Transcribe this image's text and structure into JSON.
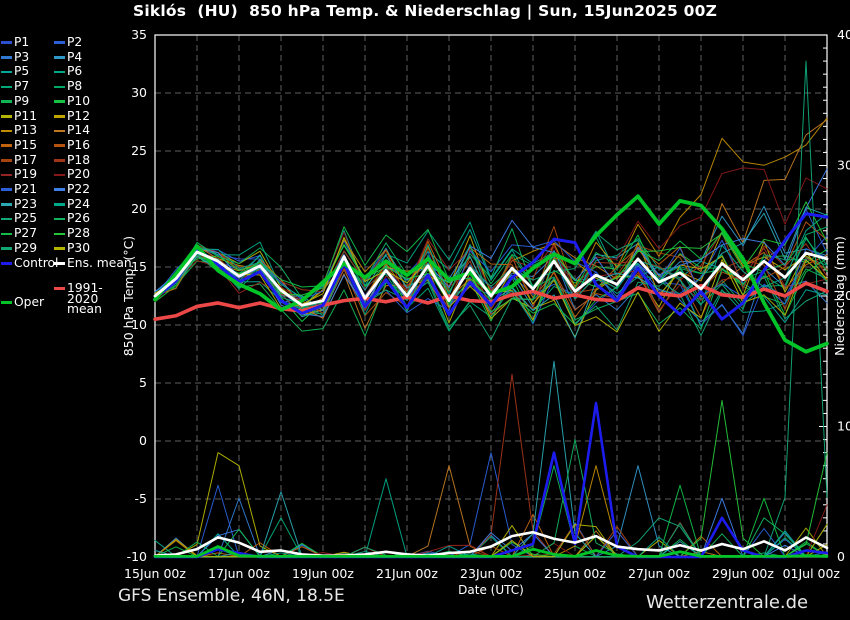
{
  "title": "Siklós  (HU)  850 hPa Temp. & Niederschlag | Sun, 15Jun2025 00Z",
  "footer": {
    "left": "GFS Ensemble, 46N, 18.5E",
    "right": "Wetterzentrale.de"
  },
  "colors": {
    "background": "#000000",
    "frame": "#ffffff",
    "grid": "#5e5e5e",
    "text": "#ffffff",
    "control": "#1c1cee",
    "ens_mean": "#ffffff",
    "oper": "#00c428",
    "clim_mean": "#ec4848"
  },
  "legend": {
    "members": [
      {
        "label": "P1",
        "color": "#2a4fd0"
      },
      {
        "label": "P2",
        "color": "#2a5fd8"
      },
      {
        "label": "P3",
        "color": "#2f7ad0"
      },
      {
        "label": "P4",
        "color": "#2f96c8"
      },
      {
        "label": "P5",
        "color": "#00a89a"
      },
      {
        "label": "P6",
        "color": "#00a888"
      },
      {
        "label": "P7",
        "color": "#00a878"
      },
      {
        "label": "P8",
        "color": "#00aa66"
      },
      {
        "label": "P9",
        "color": "#10b455"
      },
      {
        "label": "P10",
        "color": "#15c242"
      },
      {
        "label": "P11",
        "color": "#b4b400"
      },
      {
        "label": "P12",
        "color": "#c0a400"
      },
      {
        "label": "P13",
        "color": "#c08c00"
      },
      {
        "label": "P14",
        "color": "#c07820"
      },
      {
        "label": "P15",
        "color": "#c06410"
      },
      {
        "label": "P16",
        "color": "#b45410"
      },
      {
        "label": "P17",
        "color": "#a84410"
      },
      {
        "label": "P18",
        "color": "#a03418"
      },
      {
        "label": "P19",
        "color": "#962420"
      },
      {
        "label": "P20",
        "color": "#881818"
      },
      {
        "label": "P21",
        "color": "#2a5fd8"
      },
      {
        "label": "P22",
        "color": "#3f7fe8"
      },
      {
        "label": "P23",
        "color": "#2aa8b4"
      },
      {
        "label": "P24",
        "color": "#00a88a"
      },
      {
        "label": "P25",
        "color": "#10a878"
      },
      {
        "label": "P26",
        "color": "#10b45f"
      },
      {
        "label": "P27",
        "color": "#12bd4a"
      },
      {
        "label": "P28",
        "color": "#25c53a"
      },
      {
        "label": "P29",
        "color": "#10a870"
      },
      {
        "label": "P30",
        "color": "#b4b400"
      }
    ],
    "control": {
      "label": "Control",
      "color": "#1c1cee"
    },
    "ens_mean": {
      "label": "Ens. mean",
      "color": "#ffffff"
    },
    "oper": {
      "label": "Oper",
      "color": "#00c428"
    },
    "clim_mean": {
      "label": "1991-2020 mean",
      "color": "#ec4848"
    }
  },
  "chart_data": {
    "type": "line",
    "title": "Siklós (HU) 850 hPa Temp. & Niederschlag | Sun, 15Jun2025 00Z",
    "x_axis": {
      "label": "Date (UTC)",
      "days_total": 16,
      "step_days": 0.5,
      "ticks": [
        {
          "label": "15Jun 00z",
          "day": 0
        },
        {
          "label": "17Jun 00z",
          "day": 2
        },
        {
          "label": "19Jun 00z",
          "day": 4
        },
        {
          "label": "21Jun 00z",
          "day": 6
        },
        {
          "label": "23Jun 00z",
          "day": 8
        },
        {
          "label": "25Jun 00z",
          "day": 10
        },
        {
          "label": "27Jun 00z",
          "day": 12
        },
        {
          "label": "29Jun 00z",
          "day": 14
        },
        {
          "label": "01Jul 00z",
          "day": 16
        }
      ],
      "grid_every_days": 1
    },
    "y_left": {
      "label": "850 hPa Temp. (°C)",
      "min": -10,
      "max": 35,
      "ticks": [
        -10,
        -5,
        0,
        5,
        10,
        15,
        20,
        25,
        30,
        35
      ],
      "grid_ticks": [
        -5,
        0,
        5,
        10,
        15,
        20,
        25,
        30
      ]
    },
    "y_right": {
      "label": "Niederschlag (mm)",
      "min": 0,
      "max": 40,
      "ticks": [
        0,
        10,
        20,
        30,
        40
      ]
    },
    "series": {
      "ens_mean_temp": [
        12.5,
        14.0,
        16.3,
        15.5,
        14.2,
        15.1,
        13.0,
        11.7,
        12.1,
        15.9,
        12.3,
        14.7,
        12.5,
        15.1,
        12.1,
        14.9,
        12.5,
        14.9,
        13.1,
        15.5,
        12.9,
        14.3,
        13.5,
        15.7,
        13.7,
        14.5,
        13.1,
        15.3,
        13.9,
        15.5,
        14.1,
        16.2,
        15.7
      ],
      "control_temp": [
        12.3,
        13.8,
        16.6,
        15.2,
        13.7,
        14.6,
        12.1,
        11.0,
        11.7,
        15.3,
        11.6,
        13.9,
        11.5,
        14.3,
        10.9,
        13.7,
        11.7,
        14.1,
        15.4,
        17.4,
        17.1,
        13.5,
        12.1,
        14.9,
        12.5,
        10.9,
        12.9,
        10.5,
        11.9,
        14.7,
        17.3,
        19.6,
        19.3
      ],
      "oper_temp": [
        12.2,
        14.4,
        16.8,
        14.7,
        13.5,
        12.7,
        11.3,
        12.1,
        13.7,
        15.3,
        14.1,
        15.5,
        14.3,
        15.7,
        13.9,
        14.5,
        12.7,
        13.3,
        14.9,
        16.1,
        15.3,
        17.7,
        19.5,
        21.1,
        18.7,
        20.7,
        20.3,
        18.3,
        15.7,
        11.9,
        8.7,
        7.7,
        8.4
      ],
      "clim_mean_temp": [
        10.5,
        10.8,
        11.6,
        11.9,
        11.5,
        11.9,
        11.4,
        11.2,
        11.7,
        12.1,
        12.3,
        12.0,
        12.4,
        11.9,
        12.5,
        12.1,
        12.0,
        12.6,
        12.9,
        12.3,
        12.6,
        12.2,
        12.1,
        13.2,
        12.7,
        12.5,
        13.4,
        12.6,
        12.4,
        13.1,
        12.5,
        13.6,
        12.9
      ],
      "ens_mean_precip": [
        0.1,
        0.2,
        0.6,
        1.5,
        1.1,
        0.4,
        0.5,
        0.2,
        0.1,
        0.1,
        0.2,
        0.4,
        0.2,
        0.1,
        0.3,
        0.4,
        0.8,
        1.6,
        1.9,
        1.4,
        1.1,
        1.6,
        0.8,
        0.6,
        0.5,
        0.9,
        0.5,
        1.0,
        0.6,
        1.2,
        0.5,
        1.5,
        0.7
      ],
      "control_precip": [
        0,
        0,
        0,
        0.6,
        0.3,
        0,
        0,
        0,
        0,
        0,
        0,
        0,
        0,
        0,
        0,
        0,
        0,
        0.5,
        1.0,
        8.0,
        1.0,
        11.8,
        0.8,
        0,
        0,
        0,
        0,
        3.0,
        0.5,
        0,
        0,
        0.5,
        0.3
      ],
      "oper_precip": [
        0.05,
        0.05,
        0.05,
        0.8,
        0.1,
        0.05,
        0.05,
        0.05,
        0.05,
        0.05,
        0.05,
        0.05,
        0.05,
        0.05,
        0.05,
        0.05,
        0.05,
        0.05,
        0.6,
        0.2,
        0.05,
        0.5,
        0.1,
        0.05,
        0.05,
        0.4,
        0.05,
        0.05,
        0.05,
        0.05,
        0.05,
        0.1,
        0.05
      ]
    },
    "members": {
      "count": 30,
      "colors": [
        "#2a4fd0",
        "#2a5fd8",
        "#2f7ad0",
        "#2f96c8",
        "#00a89a",
        "#00a888",
        "#00a878",
        "#00aa66",
        "#10b455",
        "#15c242",
        "#b4b400",
        "#c0a400",
        "#c08c00",
        "#c07820",
        "#c06410",
        "#b45410",
        "#a84410",
        "#a03418",
        "#962420",
        "#881818",
        "#2a5fd8",
        "#3f7fe8",
        "#2aa8b4",
        "#00a88a",
        "#10a878",
        "#10b45f",
        "#12bd4a",
        "#25c53a",
        "#10a870",
        "#b4b400"
      ],
      "seeds": [
        11,
        23,
        37,
        41,
        53,
        67,
        71,
        83,
        97,
        101,
        113,
        127,
        131,
        139,
        149,
        151,
        163,
        173,
        181,
        191,
        193,
        197,
        199,
        211,
        223,
        227,
        229,
        233,
        239,
        241
      ],
      "temp_spread": [
        0.5,
        0.8,
        1.1,
        1.3,
        1.6,
        1.9,
        2.1,
        2.3,
        2.5,
        2.7,
        2.9,
        3.0,
        3.2,
        3.3,
        3.4,
        3.5,
        3.6,
        3.7,
        3.8,
        3.9,
        4.0,
        4.1,
        4.2,
        4.3,
        4.4,
        4.5,
        4.6,
        4.6,
        4.7,
        4.8,
        4.9,
        5.0,
        5.0
      ],
      "temp_bias_events": [
        {
          "m": 12,
          "from": 16,
          "amt": 12
        },
        {
          "m": 13,
          "from": 18,
          "amt": 9
        },
        {
          "m": 19,
          "from": 20,
          "amt": 5
        },
        {
          "m": 21,
          "from": 20,
          "amt": 7
        },
        {
          "m": 24,
          "from": 24,
          "amt": -5
        }
      ],
      "precip_noise_scale": [
        1.5,
        1.5,
        2.0,
        2.5,
        2.5,
        2.0,
        2.0,
        1.5,
        0.5,
        0.5,
        0.8,
        0.8,
        0.8,
        0.5,
        1.0,
        1.0,
        2.5,
        3.0,
        3.5,
        3.5,
        3.0,
        3.0,
        2.5,
        2.5,
        2.5,
        3.0,
        2.5,
        3.0,
        2.5,
        3.0,
        2.5,
        3.5,
        3.0
      ],
      "precip_events": [
        {
          "m": 10,
          "i": 3,
          "h": 8
        },
        {
          "m": 20,
          "i": 3,
          "h": 5.5
        },
        {
          "m": 2,
          "i": 4,
          "h": 4.5
        },
        {
          "m": 10,
          "i": 4,
          "h": 7
        },
        {
          "m": 6,
          "i": 6,
          "h": 3
        },
        {
          "m": 22,
          "i": 6,
          "h": 5
        },
        {
          "m": 5,
          "i": 11,
          "h": 6
        },
        {
          "m": 13,
          "i": 14,
          "h": 7
        },
        {
          "m": 1,
          "i": 16,
          "h": 8
        },
        {
          "m": 17,
          "i": 17,
          "h": 14
        },
        {
          "m": 22,
          "i": 19,
          "h": 15
        },
        {
          "m": 8,
          "i": 19,
          "h": 7
        },
        {
          "m": 25,
          "i": 20,
          "h": 9
        },
        {
          "m": 12,
          "i": 21,
          "h": 7
        },
        {
          "m": 3,
          "i": 23,
          "h": 7
        },
        {
          "m": 24,
          "i": 24,
          "h": 3
        },
        {
          "m": 26,
          "i": 25,
          "h": 5.5
        },
        {
          "m": 21,
          "i": 27,
          "h": 4.5
        },
        {
          "m": 27,
          "i": 27,
          "h": 12
        },
        {
          "m": 9,
          "i": 29,
          "h": 4.5
        },
        {
          "m": 25,
          "i": 29,
          "h": 3
        },
        {
          "m": 24,
          "i": 31,
          "h": 38
        },
        {
          "m": 27,
          "i": 32,
          "h": 8
        },
        {
          "m": 19,
          "i": 32,
          "h": 4
        },
        {
          "m": 11,
          "i": 32,
          "h": 2.5
        }
      ]
    }
  }
}
